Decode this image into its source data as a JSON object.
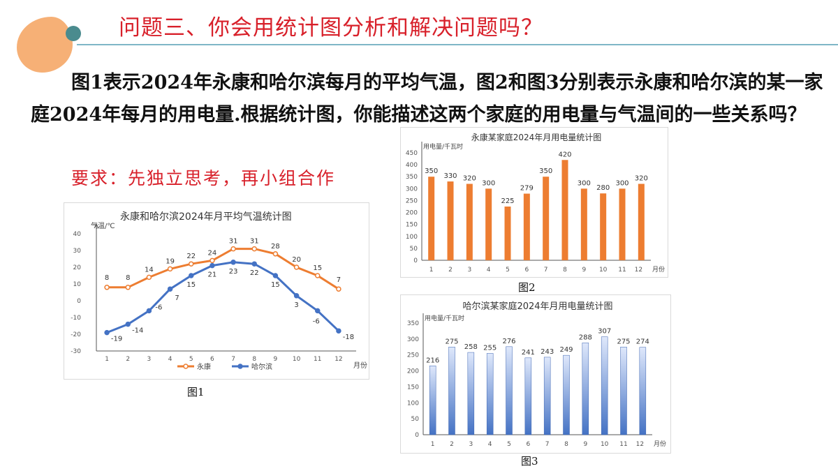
{
  "header": {
    "title": "问题三、你会用统计图分析和解决问题吗？"
  },
  "intro": {
    "text": "图1表示2024年永康和哈尔滨每月的平均气温，图2和图3分别表示永康和哈尔滨的某一家庭2024年每月的用电量.根据统计图，你能描述这两个家庭的用电量与气温间的一些关系吗？",
    "requirement": "要求：先独立思考，再小组合作"
  },
  "colors": {
    "title": "#d8202a",
    "orange": "#ed7d31",
    "blue": "#4472c4",
    "accent_teal": "#4a8b8e",
    "accent_peach": "#f5a96a"
  },
  "chart_data": [
    {
      "id": "fig1",
      "caption": "图1",
      "type": "line",
      "title": "永康和哈尔滨2024年月平均气温统计图",
      "ylabel": "气温/℃",
      "xlabel": "月份",
      "categories": [
        "1",
        "2",
        "3",
        "4",
        "5",
        "6",
        "7",
        "8",
        "9",
        "10",
        "11",
        "12"
      ],
      "ylim": [
        -30,
        40
      ],
      "yticks": [
        -30,
        -20,
        -10,
        0,
        10,
        20,
        30,
        40
      ],
      "legend": "bottom",
      "grid": false,
      "series": [
        {
          "name": "永康",
          "color": "#ed7d31",
          "values": [
            8,
            8,
            14,
            19,
            22,
            24,
            31,
            31,
            28,
            20,
            15,
            7
          ]
        },
        {
          "name": "哈尔滨",
          "color": "#4472c4",
          "values": [
            -19,
            -14,
            -6,
            7,
            15,
            21,
            23,
            22,
            15,
            3,
            -6,
            -18
          ]
        }
      ]
    },
    {
      "id": "fig2",
      "caption": "图2",
      "type": "bar",
      "title": "永康某家庭2024年月用电量统计图",
      "ylabel": "用电量/千瓦时",
      "xlabel": "月份",
      "categories": [
        "1",
        "2",
        "3",
        "4",
        "5",
        "6",
        "7",
        "8",
        "9",
        "10",
        "11",
        "12"
      ],
      "ylim": [
        0,
        450
      ],
      "yticks": [
        0,
        50,
        100,
        150,
        200,
        250,
        300,
        350,
        400,
        450
      ],
      "grid": false,
      "series": [
        {
          "color": "#ed7d31",
          "values": [
            350,
            330,
            320,
            300,
            225,
            279,
            350,
            420,
            300,
            280,
            300,
            320
          ]
        }
      ]
    },
    {
      "id": "fig3",
      "caption": "图3",
      "type": "bar",
      "title": "哈尔滨某家庭2024年月用电量统计图",
      "ylabel": "用电量/千瓦时",
      "xlabel": "月份",
      "categories": [
        "1",
        "2",
        "3",
        "4",
        "5",
        "6",
        "7",
        "8",
        "9",
        "10",
        "11",
        "12"
      ],
      "ylim": [
        0,
        350
      ],
      "yticks": [
        0,
        50,
        100,
        150,
        200,
        250,
        300,
        350
      ],
      "grid": false,
      "series": [
        {
          "color": "#4472c4",
          "values": [
            216,
            275,
            258,
            255,
            276,
            241,
            243,
            249,
            288,
            307,
            275,
            274
          ]
        }
      ]
    }
  ]
}
